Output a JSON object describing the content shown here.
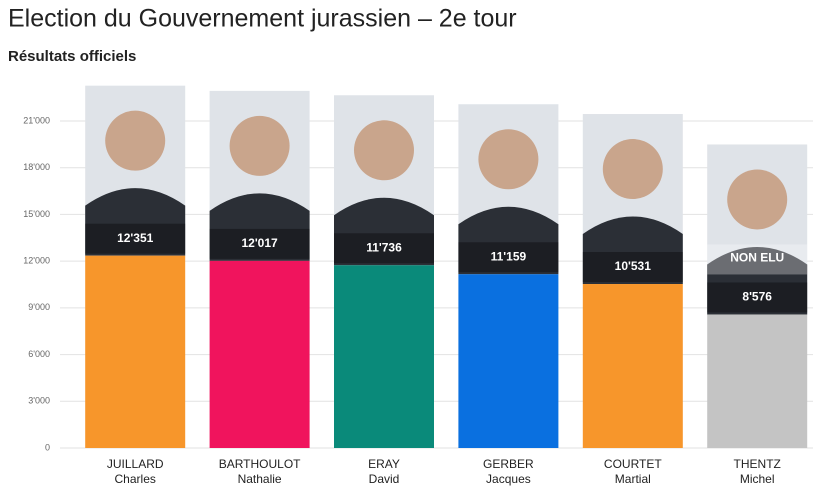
{
  "chart_data": {
    "type": "bar",
    "title": "Election du Gouvernement jurassien – 2e tour",
    "subtitle": "Résultats officiels",
    "categories": [
      "JUILLARD",
      "BARTHOULOT",
      "ERAY",
      "GERBER",
      "COURTET",
      "THENTZ"
    ],
    "first_names": [
      "Charles",
      "Nathalie",
      "David",
      "Jacques",
      "Martial",
      "Michel"
    ],
    "values": [
      12351,
      12017,
      11736,
      11159,
      10531,
      8576
    ],
    "value_labels": [
      "12'351",
      "12'017",
      "11'736",
      "11'159",
      "10'531",
      "8'576"
    ],
    "status_labels": [
      null,
      null,
      null,
      null,
      null,
      "NON ELU"
    ],
    "colors": [
      "#f7962b",
      "#f0145d",
      "#0a8a7a",
      "#0a70e0",
      "#f7962b",
      "#c4c4c4"
    ],
    "ylim": [
      0,
      21000
    ],
    "yticks": [
      0,
      {
        "value": 3000,
        "label": "3'000"
      },
      {
        "value": 6000,
        "label": "6'000"
      },
      {
        "value": 9000,
        "label": "9'000"
      },
      {
        "value": 12000,
        "label": "12'000"
      },
      {
        "value": 15000,
        "label": "15'000"
      },
      {
        "value": 18000,
        "label": "18'000"
      },
      {
        "value": 21000,
        "label": "21'000"
      }
    ],
    "grid": true
  }
}
